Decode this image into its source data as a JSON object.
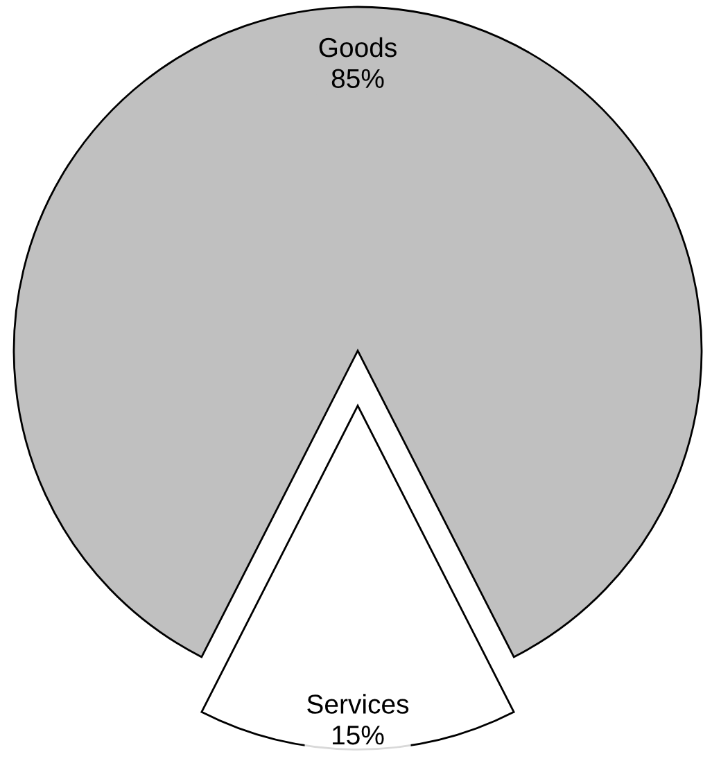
{
  "chart_data": {
    "type": "pie",
    "categories": [
      "Goods",
      "Services"
    ],
    "values": [
      85,
      15
    ],
    "colors": [
      "#c0c0c0",
      "#ffffff"
    ],
    "value_labels": [
      "85%",
      "15%"
    ],
    "legend": false
  }
}
